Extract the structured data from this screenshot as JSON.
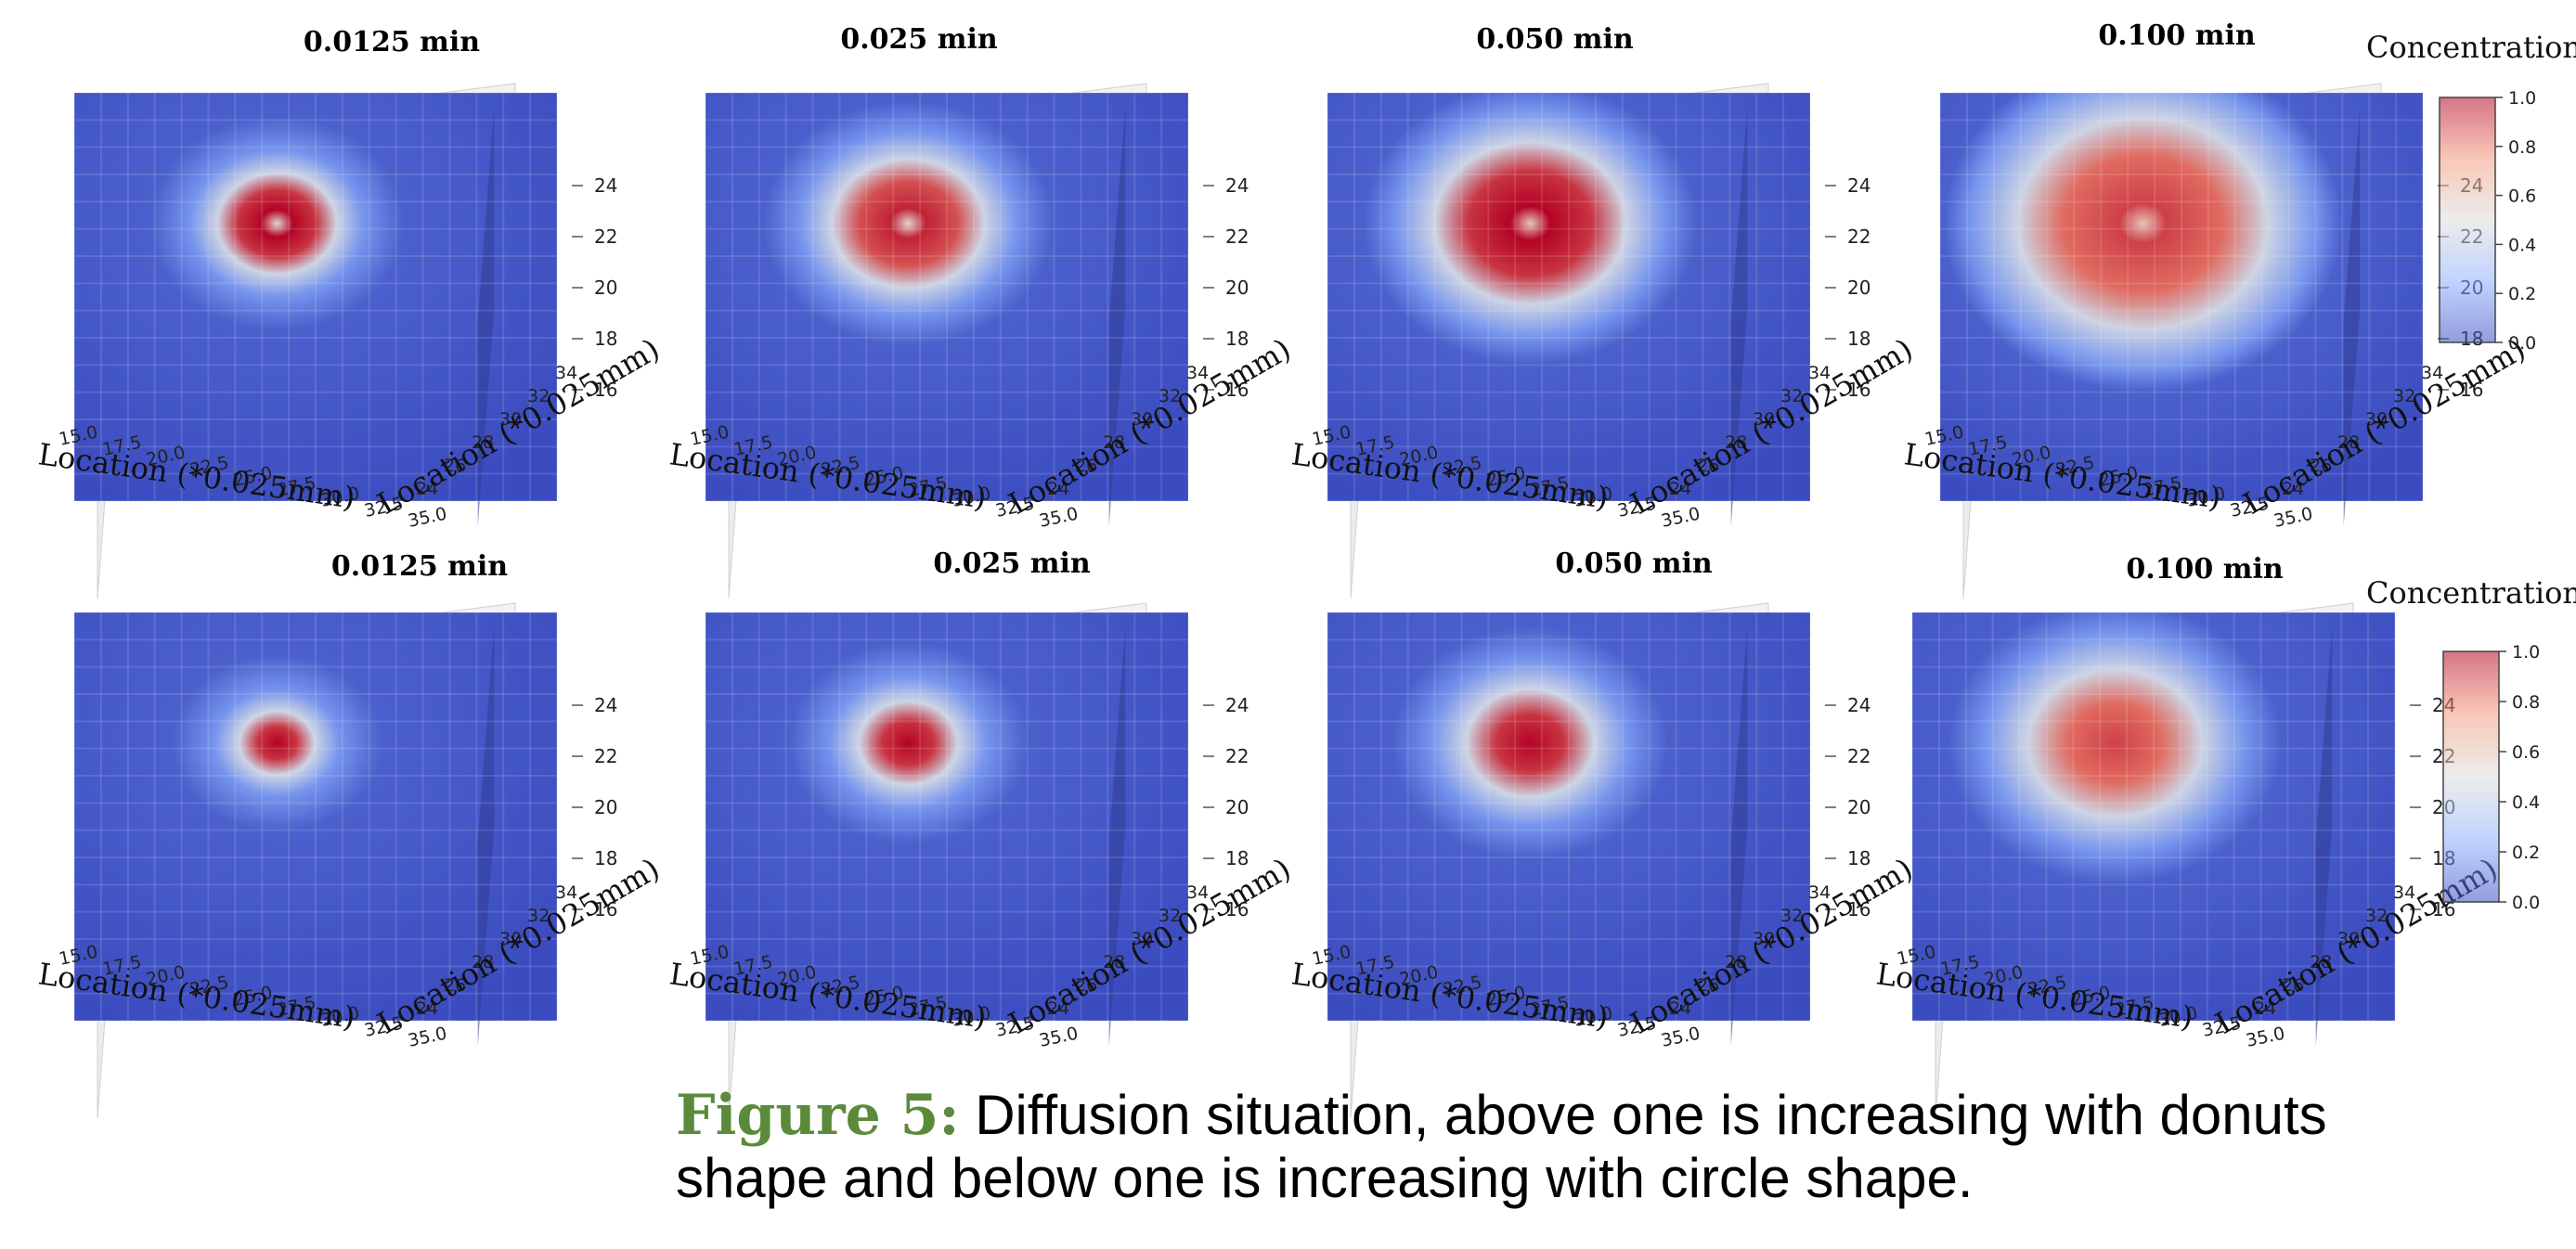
{
  "chart_data": [
    {
      "type": "heatmap",
      "row": "top",
      "title": "0.0125 min",
      "shape": "donut",
      "spread": 0.1,
      "peak": 1.0,
      "xlabel": "Location (*0.025mm)",
      "ylabel": "Location (*0.025mm)",
      "xticks": [
        "15.0",
        "17.5",
        "20.0",
        "22.5",
        "25.0",
        "27.5",
        "30.0",
        "32.5",
        "35.0"
      ],
      "yticks": [
        "24",
        "26",
        "28",
        "30",
        "32",
        "34"
      ],
      "zticks": [
        "16",
        "18",
        "20",
        "22",
        "24"
      ]
    },
    {
      "type": "heatmap",
      "row": "top",
      "title": "0.025 min",
      "shape": "donut",
      "spread": 0.2,
      "peak": 0.95,
      "xlabel": "Location (*0.025mm)",
      "ylabel": "Location (*0.025mm)",
      "xticks": [
        "15.0",
        "17.5",
        "20.0",
        "22.5",
        "25.0",
        "27.5",
        "30.0",
        "32.5",
        "35.0"
      ],
      "yticks": [
        "24",
        "26",
        "28",
        "30",
        "32",
        "34"
      ],
      "zticks": [
        "16",
        "18",
        "20",
        "22",
        "24"
      ]
    },
    {
      "type": "heatmap",
      "row": "top",
      "title": "0.050 min",
      "shape": "donut",
      "spread": 0.32,
      "peak": 1.0,
      "xlabel": "Location (*0.025mm)",
      "ylabel": "Location (*0.025mm)",
      "xticks": [
        "15.0",
        "17.5",
        "20.0",
        "22.5",
        "25.0",
        "27.5",
        "30.0",
        "32.5",
        "35.0"
      ],
      "yticks": [
        "24",
        "26",
        "28",
        "30",
        "32",
        "34"
      ],
      "zticks": [
        "16",
        "18",
        "20",
        "22",
        "24"
      ]
    },
    {
      "type": "heatmap",
      "row": "top",
      "title": "0.100 min",
      "shape": "donut",
      "spread": 0.5,
      "peak": 0.9,
      "xlabel": "Location (*0.025mm)",
      "ylabel": "Location (*0.025mm)",
      "xticks": [
        "15.0",
        "17.5",
        "20.0",
        "22.5",
        "25.0",
        "27.5",
        "30.0",
        "32.5",
        "35.0"
      ],
      "yticks": [
        "24",
        "26",
        "28",
        "30",
        "32",
        "34"
      ],
      "zticks": [
        "16",
        "18",
        "20",
        "22",
        "24"
      ]
    },
    {
      "type": "heatmap",
      "row": "bottom",
      "title": "0.0125 min",
      "shape": "circle",
      "spread": 0.06,
      "peak": 1.0,
      "xlabel": "Location (*0.025mm)",
      "ylabel": "Location (*0.025mm)",
      "xticks": [
        "15.0",
        "17.5",
        "20.0",
        "22.5",
        "25.0",
        "27.5",
        "30.0",
        "32.5",
        "35.0"
      ],
      "yticks": [
        "24",
        "26",
        "28",
        "30",
        "32",
        "34"
      ],
      "zticks": [
        "16",
        "18",
        "20",
        "22",
        "24"
      ]
    },
    {
      "type": "heatmap",
      "row": "bottom",
      "title": "0.025 min",
      "shape": "circle",
      "spread": 0.14,
      "peak": 1.0,
      "xlabel": "Location (*0.025mm)",
      "ylabel": "Location (*0.025mm)",
      "xticks": [
        "15.0",
        "17.5",
        "20.0",
        "22.5",
        "25.0",
        "27.5",
        "30.0",
        "32.5",
        "35.0"
      ],
      "yticks": [
        "24",
        "26",
        "28",
        "30",
        "32",
        "34"
      ],
      "zticks": [
        "16",
        "18",
        "20",
        "22",
        "24"
      ]
    },
    {
      "type": "heatmap",
      "row": "bottom",
      "title": "0.050 min",
      "shape": "circle",
      "spread": 0.24,
      "peak": 1.0,
      "xlabel": "Location (*0.025mm)",
      "ylabel": "Location (*0.025mm)",
      "xticks": [
        "15.0",
        "17.5",
        "20.0",
        "22.5",
        "25.0",
        "27.5",
        "30.0",
        "32.5",
        "35.0"
      ],
      "yticks": [
        "24",
        "26",
        "28",
        "30",
        "32",
        "34"
      ],
      "zticks": [
        "16",
        "18",
        "20",
        "22",
        "24"
      ]
    },
    {
      "type": "heatmap",
      "row": "bottom",
      "title": "0.100 min",
      "shape": "circle",
      "spread": 0.4,
      "peak": 0.9,
      "xlabel": "Location (*0.025mm)",
      "ylabel": "Location (*0.025mm)",
      "xticks": [
        "15.0",
        "17.5",
        "20.0",
        "22.5",
        "25.0",
        "27.5",
        "30.0",
        "32.5",
        "35.0"
      ],
      "yticks": [
        "24",
        "26",
        "28",
        "30",
        "32",
        "34"
      ],
      "zticks": [
        "16",
        "18",
        "20",
        "22",
        "24"
      ]
    }
  ],
  "colorbar": {
    "title": "Concentration",
    "ticks": [
      "0.0",
      "0.2",
      "0.4",
      "0.6",
      "0.8",
      "1.0"
    ],
    "range": [
      0.0,
      1.0
    ],
    "colors": {
      "low": "#3b4cc0",
      "mid": "#f1f1f1",
      "high": "#b40426"
    }
  },
  "caption": {
    "label": "Figure 5:",
    "text": "Diffusion situation, above one is increasing with donuts shape and below one is increasing with circle shape."
  }
}
